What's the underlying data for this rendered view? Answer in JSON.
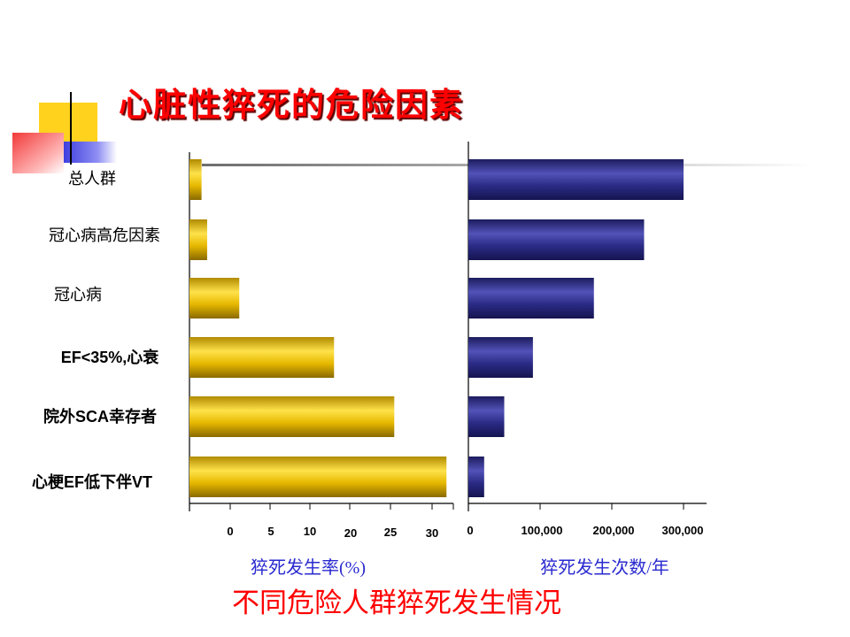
{
  "slide": {
    "title": "心脏性猝死的危险因素",
    "caption": "不同危险人群猝死发生情况",
    "accent_colors": {
      "title": "#ff0000",
      "axis_label": "#2a2ad0",
      "left_bars": "#e6b800",
      "right_bars": "#2b2b86"
    }
  },
  "chart_data": [
    {
      "type": "bar",
      "orientation": "horizontal",
      "categories": [
        "总人群",
        "冠心病高危因素",
        "冠心病",
        "EF<35%,心衰",
        "院外SCA幸存者",
        "心梗EF低下伴VT"
      ],
      "values": [
        1.5,
        2.2,
        6.2,
        18,
        25.5,
        32
      ],
      "xlabel": "猝死发生率(%)",
      "ylabel": "",
      "xticks": [
        "0",
        "5",
        "10",
        "20",
        "25",
        "30"
      ],
      "xlim": [
        0,
        32
      ],
      "grid": false
    },
    {
      "type": "bar",
      "orientation": "horizontal",
      "categories": [
        "总人群",
        "冠心病高危因素",
        "冠心病",
        "EF<35%,心衰",
        "院外SCA幸存者",
        "心梗EF低下伴VT"
      ],
      "values": [
        300000,
        245000,
        175000,
        90000,
        50000,
        22000
      ],
      "xlabel": "猝死发生次数/年",
      "ylabel": "",
      "xticks": [
        "0",
        "100,000",
        "200,000",
        "300,000"
      ],
      "xlim": [
        0,
        330000
      ],
      "grid": false
    }
  ]
}
